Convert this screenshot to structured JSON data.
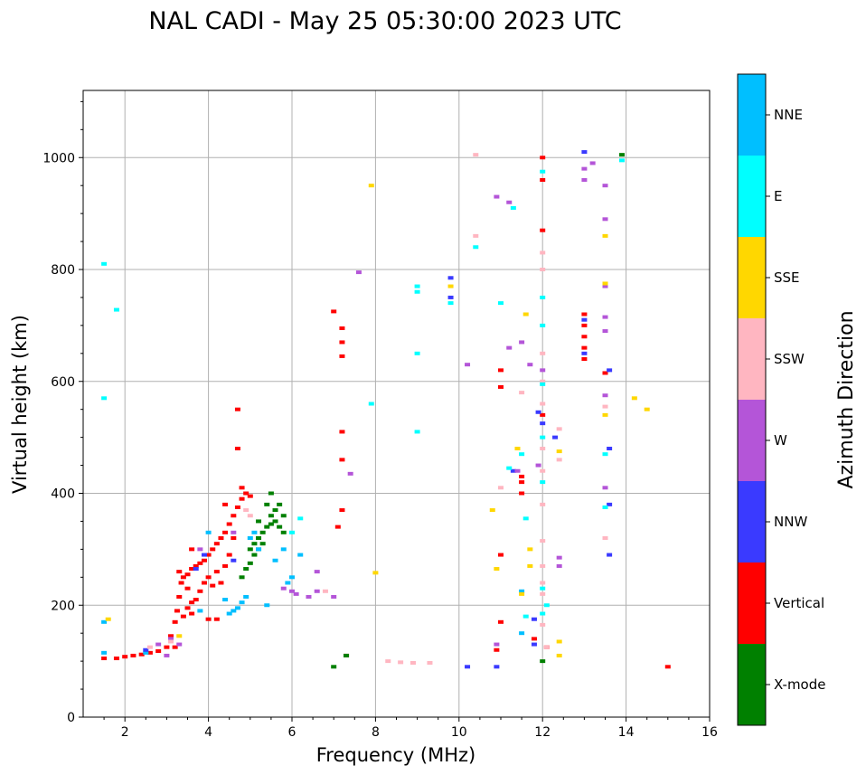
{
  "chart_data": {
    "type": "scatter",
    "title": "NAL CADI - May 25 05:30:00 2023 UTC",
    "xlabel": "Frequency (MHz)",
    "ylabel": "Virtual height (km)",
    "xlim": [
      1,
      16
    ],
    "ylim": [
      0,
      1120
    ],
    "xticks": [
      2,
      4,
      6,
      8,
      10,
      12,
      14,
      16
    ],
    "yticks": [
      0,
      200,
      400,
      600,
      800,
      1000
    ],
    "grid": true,
    "colorbar": {
      "title": "Azimuth Direction",
      "categories": [
        {
          "name": "X-mode",
          "color": "#008000"
        },
        {
          "name": "Vertical",
          "color": "#ff0000"
        },
        {
          "name": "NNW",
          "color": "#3a3aff"
        },
        {
          "name": "W",
          "color": "#b455d8"
        },
        {
          "name": "SSW",
          "color": "#ffb6c1"
        },
        {
          "name": "SSE",
          "color": "#ffd700"
        },
        {
          "name": "E",
          "color": "#00ffff"
        },
        {
          "name": "NNE",
          "color": "#00bfff"
        }
      ]
    },
    "series": [
      {
        "name": "Vertical",
        "points": [
          [
            1.5,
            105
          ],
          [
            1.8,
            105
          ],
          [
            2.0,
            108
          ],
          [
            2.2,
            110
          ],
          [
            2.4,
            112
          ],
          [
            2.6,
            115
          ],
          [
            2.8,
            118
          ],
          [
            3.0,
            125
          ],
          [
            3.1,
            145
          ],
          [
            3.2,
            170
          ],
          [
            3.25,
            190
          ],
          [
            3.3,
            215
          ],
          [
            3.35,
            240
          ],
          [
            3.4,
            250
          ],
          [
            3.5,
            255
          ],
          [
            3.5,
            230
          ],
          [
            3.6,
            205
          ],
          [
            3.6,
            265
          ],
          [
            3.7,
            270
          ],
          [
            3.7,
            210
          ],
          [
            3.8,
            275
          ],
          [
            3.8,
            225
          ],
          [
            3.9,
            280
          ],
          [
            3.9,
            240
          ],
          [
            4.0,
            290
          ],
          [
            4.0,
            250
          ],
          [
            4.1,
            300
          ],
          [
            4.1,
            235
          ],
          [
            4.2,
            310
          ],
          [
            4.2,
            260
          ],
          [
            4.3,
            320
          ],
          [
            4.3,
            240
          ],
          [
            4.4,
            330
          ],
          [
            4.4,
            270
          ],
          [
            4.5,
            345
          ],
          [
            4.5,
            290
          ],
          [
            4.6,
            360
          ],
          [
            4.6,
            320
          ],
          [
            4.7,
            375
          ],
          [
            4.8,
            390
          ],
          [
            4.9,
            400
          ],
          [
            5.0,
            395
          ],
          [
            4.0,
            175
          ],
          [
            4.2,
            175
          ],
          [
            3.5,
            195
          ],
          [
            3.3,
            260
          ],
          [
            3.4,
            180
          ],
          [
            3.6,
            185
          ],
          [
            3.2,
            125
          ],
          [
            3.6,
            300
          ],
          [
            4.4,
            380
          ],
          [
            4.7,
            480
          ],
          [
            4.7,
            550
          ],
          [
            4.8,
            410
          ],
          [
            7.0,
            725
          ],
          [
            7.2,
            695
          ],
          [
            7.2,
            670
          ],
          [
            7.2,
            645
          ],
          [
            7.2,
            510
          ],
          [
            7.2,
            460
          ],
          [
            7.1,
            340
          ],
          [
            7.2,
            370
          ],
          [
            7.3,
            110
          ],
          [
            10.9,
            120
          ],
          [
            11.0,
            170
          ],
          [
            11.0,
            290
          ],
          [
            11.0,
            590
          ],
          [
            11.0,
            620
          ],
          [
            11.5,
            420
          ],
          [
            11.5,
            430
          ],
          [
            11.5,
            400
          ],
          [
            12.0,
            540
          ],
          [
            12.0,
            1000
          ],
          [
            12.0,
            960
          ],
          [
            12.0,
            870
          ],
          [
            11.8,
            140
          ],
          [
            12.1,
            125
          ],
          [
            13.0,
            640
          ],
          [
            13.0,
            660
          ],
          [
            13.0,
            680
          ],
          [
            13.0,
            700
          ],
          [
            13.0,
            720
          ],
          [
            13.5,
            615
          ],
          [
            15.0,
            90
          ]
        ]
      },
      {
        "name": "X-mode",
        "points": [
          [
            4.8,
            250
          ],
          [
            4.9,
            265
          ],
          [
            5.0,
            275
          ],
          [
            5.0,
            300
          ],
          [
            5.1,
            290
          ],
          [
            5.1,
            310
          ],
          [
            5.2,
            300
          ],
          [
            5.2,
            320
          ],
          [
            5.3,
            310
          ],
          [
            5.3,
            330
          ],
          [
            5.4,
            340
          ],
          [
            5.5,
            345
          ],
          [
            5.5,
            360
          ],
          [
            5.6,
            350
          ],
          [
            5.6,
            370
          ],
          [
            5.7,
            340
          ],
          [
            5.7,
            380
          ],
          [
            5.8,
            330
          ],
          [
            5.8,
            360
          ],
          [
            5.5,
            400
          ],
          [
            5.4,
            380
          ],
          [
            5.2,
            350
          ],
          [
            7.3,
            110
          ],
          [
            7.0,
            90
          ],
          [
            12.0,
            100
          ],
          [
            13.9,
            1005
          ]
        ]
      },
      {
        "name": "NNE",
        "points": [
          [
            1.5,
            115
          ],
          [
            1.5,
            170
          ],
          [
            2.5,
            115
          ],
          [
            3.8,
            190
          ],
          [
            4.0,
            330
          ],
          [
            4.4,
            210
          ],
          [
            4.5,
            185
          ],
          [
            4.6,
            190
          ],
          [
            4.7,
            195
          ],
          [
            4.8,
            205
          ],
          [
            4.9,
            215
          ],
          [
            5.0,
            320
          ],
          [
            5.1,
            330
          ],
          [
            5.2,
            300
          ],
          [
            5.4,
            200
          ],
          [
            5.6,
            280
          ],
          [
            5.8,
            300
          ],
          [
            5.9,
            240
          ],
          [
            6.0,
            250
          ],
          [
            6.2,
            290
          ],
          [
            11.5,
            150
          ],
          [
            11.5,
            225
          ]
        ]
      },
      {
        "name": "NNW",
        "points": [
          [
            2.5,
            120
          ],
          [
            3.7,
            265
          ],
          [
            3.9,
            290
          ],
          [
            4.6,
            280
          ],
          [
            9.8,
            785
          ],
          [
            9.8,
            750
          ],
          [
            10.2,
            90
          ],
          [
            10.9,
            90
          ],
          [
            11.3,
            440
          ],
          [
            11.8,
            130
          ],
          [
            11.8,
            175
          ],
          [
            11.9,
            545
          ],
          [
            12.0,
            525
          ],
          [
            12.3,
            500
          ],
          [
            13.0,
            710
          ],
          [
            13.0,
            650
          ],
          [
            13.6,
            620
          ],
          [
            13.6,
            480
          ],
          [
            13.6,
            380
          ],
          [
            13.6,
            290
          ],
          [
            13.0,
            1010
          ]
        ]
      },
      {
        "name": "W",
        "points": [
          [
            2.8,
            130
          ],
          [
            3.0,
            110
          ],
          [
            3.1,
            140
          ],
          [
            3.3,
            130
          ],
          [
            3.8,
            300
          ],
          [
            4.6,
            330
          ],
          [
            5.8,
            230
          ],
          [
            6.1,
            220
          ],
          [
            6.6,
            260
          ],
          [
            6.6,
            225
          ],
          [
            7.0,
            215
          ],
          [
            7.4,
            435
          ],
          [
            7.6,
            795
          ],
          [
            10.2,
            630
          ],
          [
            10.9,
            930
          ],
          [
            11.2,
            920
          ],
          [
            11.2,
            660
          ],
          [
            11.5,
            670
          ],
          [
            11.7,
            630
          ],
          [
            11.9,
            450
          ],
          [
            12.0,
            620
          ],
          [
            12.4,
            285
          ],
          [
            12.4,
            270
          ],
          [
            13.0,
            960
          ],
          [
            13.0,
            980
          ],
          [
            13.2,
            990
          ],
          [
            13.5,
            950
          ],
          [
            13.5,
            890
          ],
          [
            13.5,
            770
          ],
          [
            13.5,
            715
          ],
          [
            13.5,
            690
          ],
          [
            13.5,
            575
          ],
          [
            13.5,
            410
          ],
          [
            6.4,
            215
          ],
          [
            6.0,
            225
          ],
          [
            10.9,
            130
          ],
          [
            11.4,
            440
          ]
        ]
      },
      {
        "name": "SSW",
        "points": [
          [
            2.6,
            125
          ],
          [
            3.1,
            135
          ],
          [
            4.9,
            370
          ],
          [
            5.0,
            360
          ],
          [
            6.8,
            225
          ],
          [
            8.3,
            100
          ],
          [
            8.6,
            98
          ],
          [
            8.9,
            97
          ],
          [
            9.3,
            97
          ],
          [
            10.4,
            1005
          ],
          [
            10.4,
            860
          ],
          [
            11.0,
            410
          ],
          [
            11.5,
            580
          ],
          [
            12.0,
            830
          ],
          [
            12.0,
            800
          ],
          [
            12.0,
            650
          ],
          [
            12.0,
            600
          ],
          [
            12.0,
            560
          ],
          [
            12.0,
            480
          ],
          [
            12.0,
            440
          ],
          [
            12.0,
            380
          ],
          [
            12.0,
            315
          ],
          [
            12.0,
            270
          ],
          [
            12.0,
            240
          ],
          [
            12.0,
            220
          ],
          [
            12.0,
            165
          ],
          [
            12.1,
            125
          ],
          [
            12.4,
            460
          ],
          [
            12.4,
            515
          ],
          [
            13.5,
            320
          ],
          [
            13.5,
            555
          ]
        ]
      },
      {
        "name": "SSE",
        "points": [
          [
            1.6,
            175
          ],
          [
            3.3,
            145
          ],
          [
            7.9,
            950
          ],
          [
            8.0,
            258
          ],
          [
            9.8,
            770
          ],
          [
            10.8,
            370
          ],
          [
            10.9,
            265
          ],
          [
            11.4,
            480
          ],
          [
            11.5,
            220
          ],
          [
            11.7,
            270
          ],
          [
            11.7,
            300
          ],
          [
            12.4,
            135
          ],
          [
            12.4,
            110
          ],
          [
            12.4,
            475
          ],
          [
            13.5,
            540
          ],
          [
            13.5,
            860
          ],
          [
            13.5,
            775
          ],
          [
            14.2,
            570
          ],
          [
            14.5,
            550
          ],
          [
            11.6,
            720
          ]
        ]
      },
      {
        "name": "E",
        "points": [
          [
            1.5,
            810
          ],
          [
            1.5,
            570
          ],
          [
            1.8,
            728
          ],
          [
            7.9,
            560
          ],
          [
            9.0,
            770
          ],
          [
            9.0,
            760
          ],
          [
            9.0,
            650
          ],
          [
            9.0,
            510
          ],
          [
            9.8,
            740
          ],
          [
            10.4,
            840
          ],
          [
            11.0,
            740
          ],
          [
            11.2,
            445
          ],
          [
            11.3,
            910
          ],
          [
            11.5,
            470
          ],
          [
            11.6,
            355
          ],
          [
            11.6,
            180
          ],
          [
            12.0,
            975
          ],
          [
            12.0,
            750
          ],
          [
            12.0,
            700
          ],
          [
            12.0,
            595
          ],
          [
            12.0,
            500
          ],
          [
            12.0,
            420
          ],
          [
            12.0,
            230
          ],
          [
            12.0,
            185
          ],
          [
            12.1,
            200
          ],
          [
            13.5,
            470
          ],
          [
            13.5,
            375
          ],
          [
            13.9,
            995
          ],
          [
            6.2,
            355
          ],
          [
            6.0,
            330
          ]
        ]
      }
    ]
  }
}
